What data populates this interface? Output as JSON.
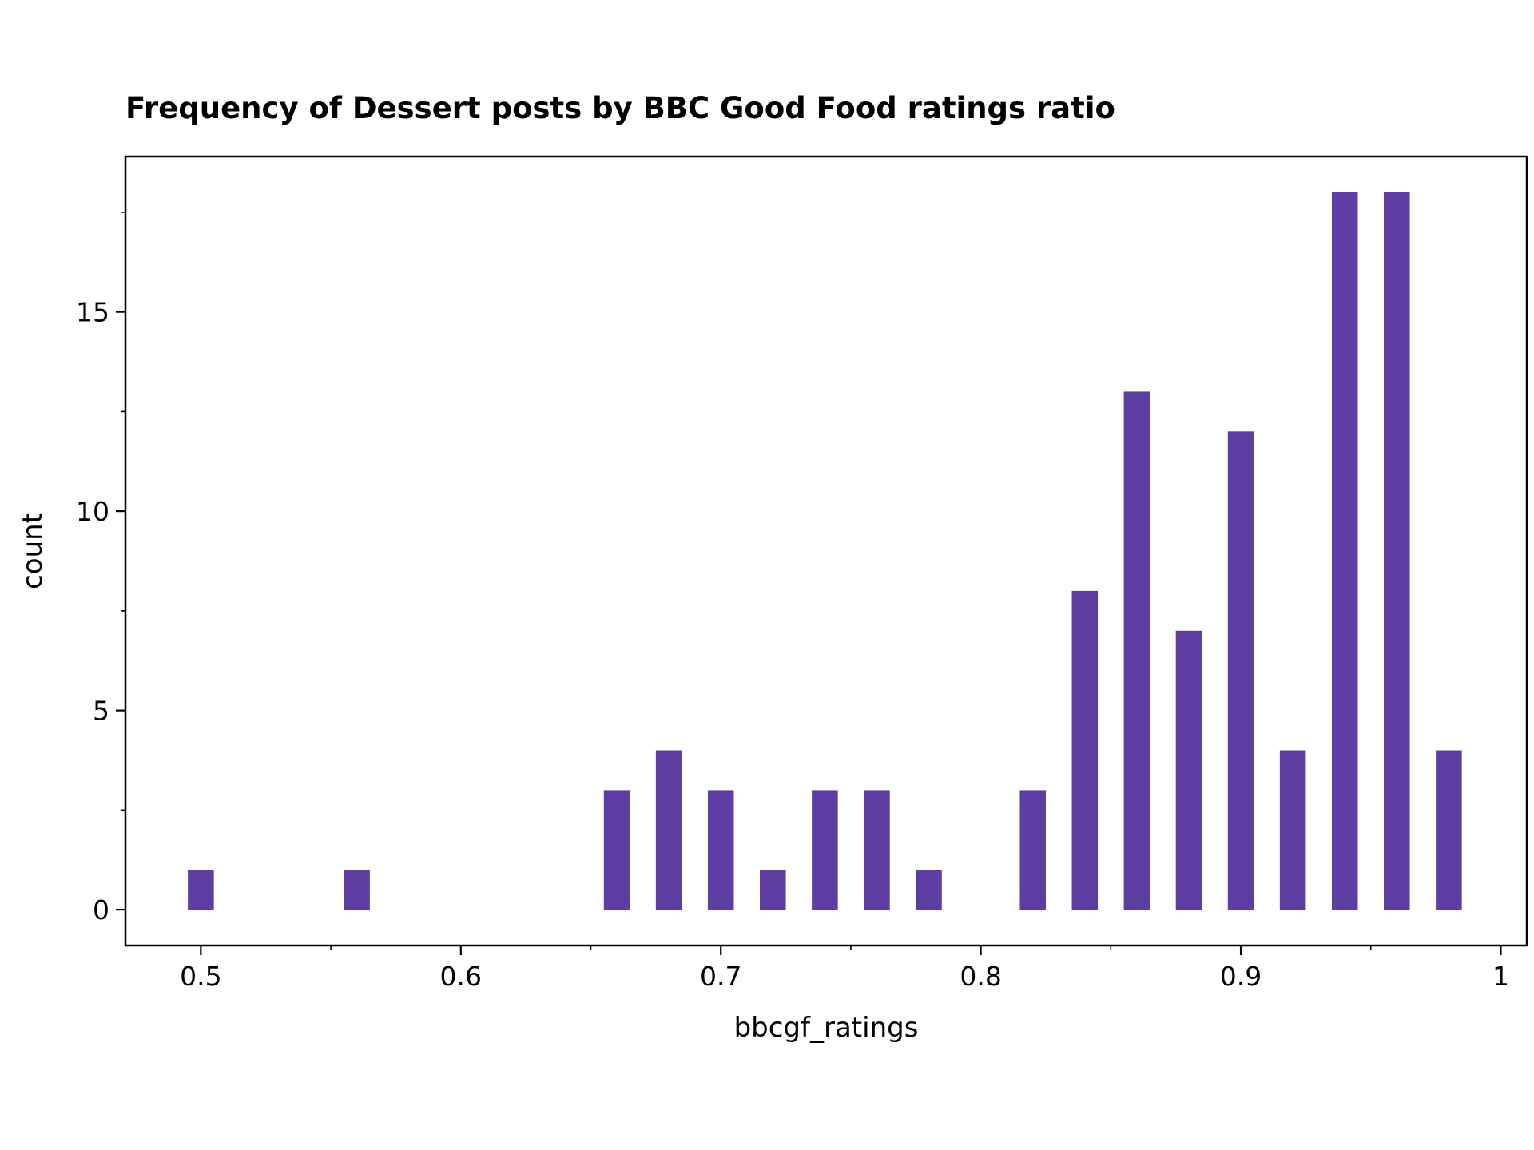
{
  "chart_data": {
    "type": "bar",
    "title": "Frequency of Dessert posts by BBC Good Food ratings ratio",
    "xlabel": "bbcgf_ratings",
    "ylabel": "count",
    "xlim": [
      0.471,
      1.01
    ],
    "ylim": [
      -0.9,
      18.9
    ],
    "x_ticks": [
      0.5,
      0.6,
      0.7,
      0.8,
      0.9,
      1.0
    ],
    "x_tick_labels": [
      "0.5",
      "0.6",
      "0.7",
      "0.8",
      "0.9",
      "1"
    ],
    "y_ticks": [
      0,
      5,
      10,
      15
    ],
    "y_tick_labels": [
      "0",
      "5",
      "10",
      "15"
    ],
    "bar_color": "#5e3ea1",
    "grid": false,
    "x": [
      0.5,
      0.56,
      0.66,
      0.68,
      0.7,
      0.72,
      0.74,
      0.76,
      0.78,
      0.82,
      0.84,
      0.86,
      0.88,
      0.9,
      0.92,
      0.94,
      0.96,
      0.98
    ],
    "values": [
      1,
      1,
      3,
      4,
      3,
      1,
      3,
      3,
      1,
      3,
      8,
      13,
      7,
      12,
      4,
      18,
      18,
      4
    ]
  }
}
